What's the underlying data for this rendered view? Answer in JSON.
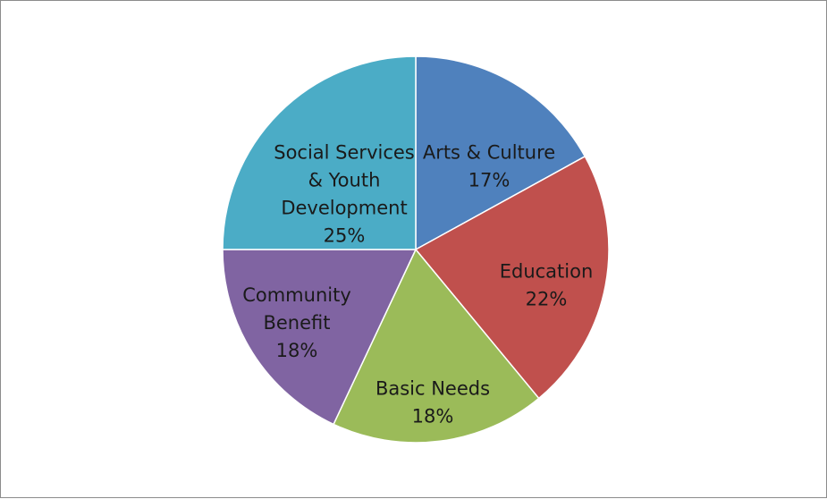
{
  "chart_data": {
    "type": "pie",
    "title": "",
    "slices": [
      {
        "label_lines": [
          "Arts & Culture"
        ],
        "value": 17,
        "value_label": "17%",
        "color": "#4F81BD"
      },
      {
        "label_lines": [
          "Education"
        ],
        "value": 22,
        "value_label": "22%",
        "color": "#C0504D"
      },
      {
        "label_lines": [
          "Basic Needs"
        ],
        "value": 18,
        "value_label": "18%",
        "color": "#9BBB59"
      },
      {
        "label_lines": [
          "Community",
          "Benefit"
        ],
        "value": 18,
        "value_label": "18%",
        "color": "#8064A2"
      },
      {
        "label_lines": [
          "Social Services",
          "& Youth",
          "Development"
        ],
        "value": 25,
        "value_label": "25%",
        "color": "#4BACC6"
      }
    ],
    "start_angle": "12 o'clock",
    "direction": "clockwise",
    "legend": "none",
    "data_labels": "inside slices"
  }
}
